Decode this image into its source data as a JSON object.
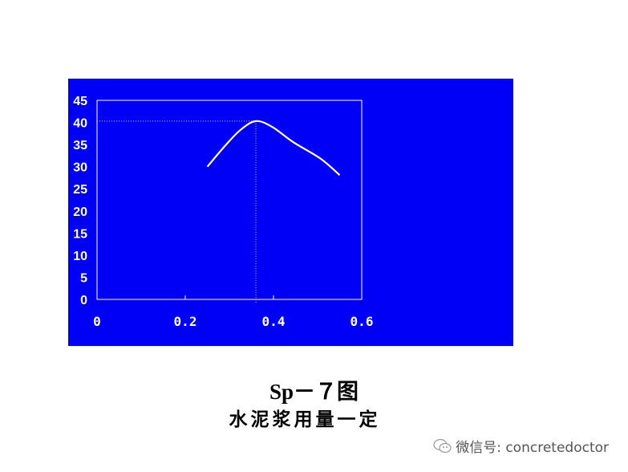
{
  "chart_data": {
    "type": "line",
    "title": "",
    "xlabel": "",
    "ylabel": "",
    "xlim": [
      0,
      0.6
    ],
    "ylim": [
      0,
      45
    ],
    "xticks": [
      "0",
      "0.2",
      "0.4",
      "0.6"
    ],
    "yticks": [
      "0",
      "5",
      "10",
      "15",
      "20",
      "25",
      "30",
      "35",
      "40",
      "45"
    ],
    "grid": false,
    "background_color": "#0000f6",
    "line_color": "#ffffff",
    "series": [
      {
        "x": [
          0.25,
          0.29,
          0.325,
          0.36,
          0.397,
          0.444,
          0.507,
          0.55
        ],
        "y": [
          30,
          34.7,
          38.3,
          40.3,
          39,
          35.6,
          31.8,
          28.1
        ]
      }
    ],
    "reference_lines": {
      "peak_x": 0.36,
      "peak_y": 40.3,
      "style": "dotted"
    }
  },
  "caption": {
    "line1": "Sp－７图",
    "line2": "水泥浆用量一定"
  },
  "watermark": {
    "icon": "wechat-icon",
    "text": "微信号: concretedoctor"
  }
}
